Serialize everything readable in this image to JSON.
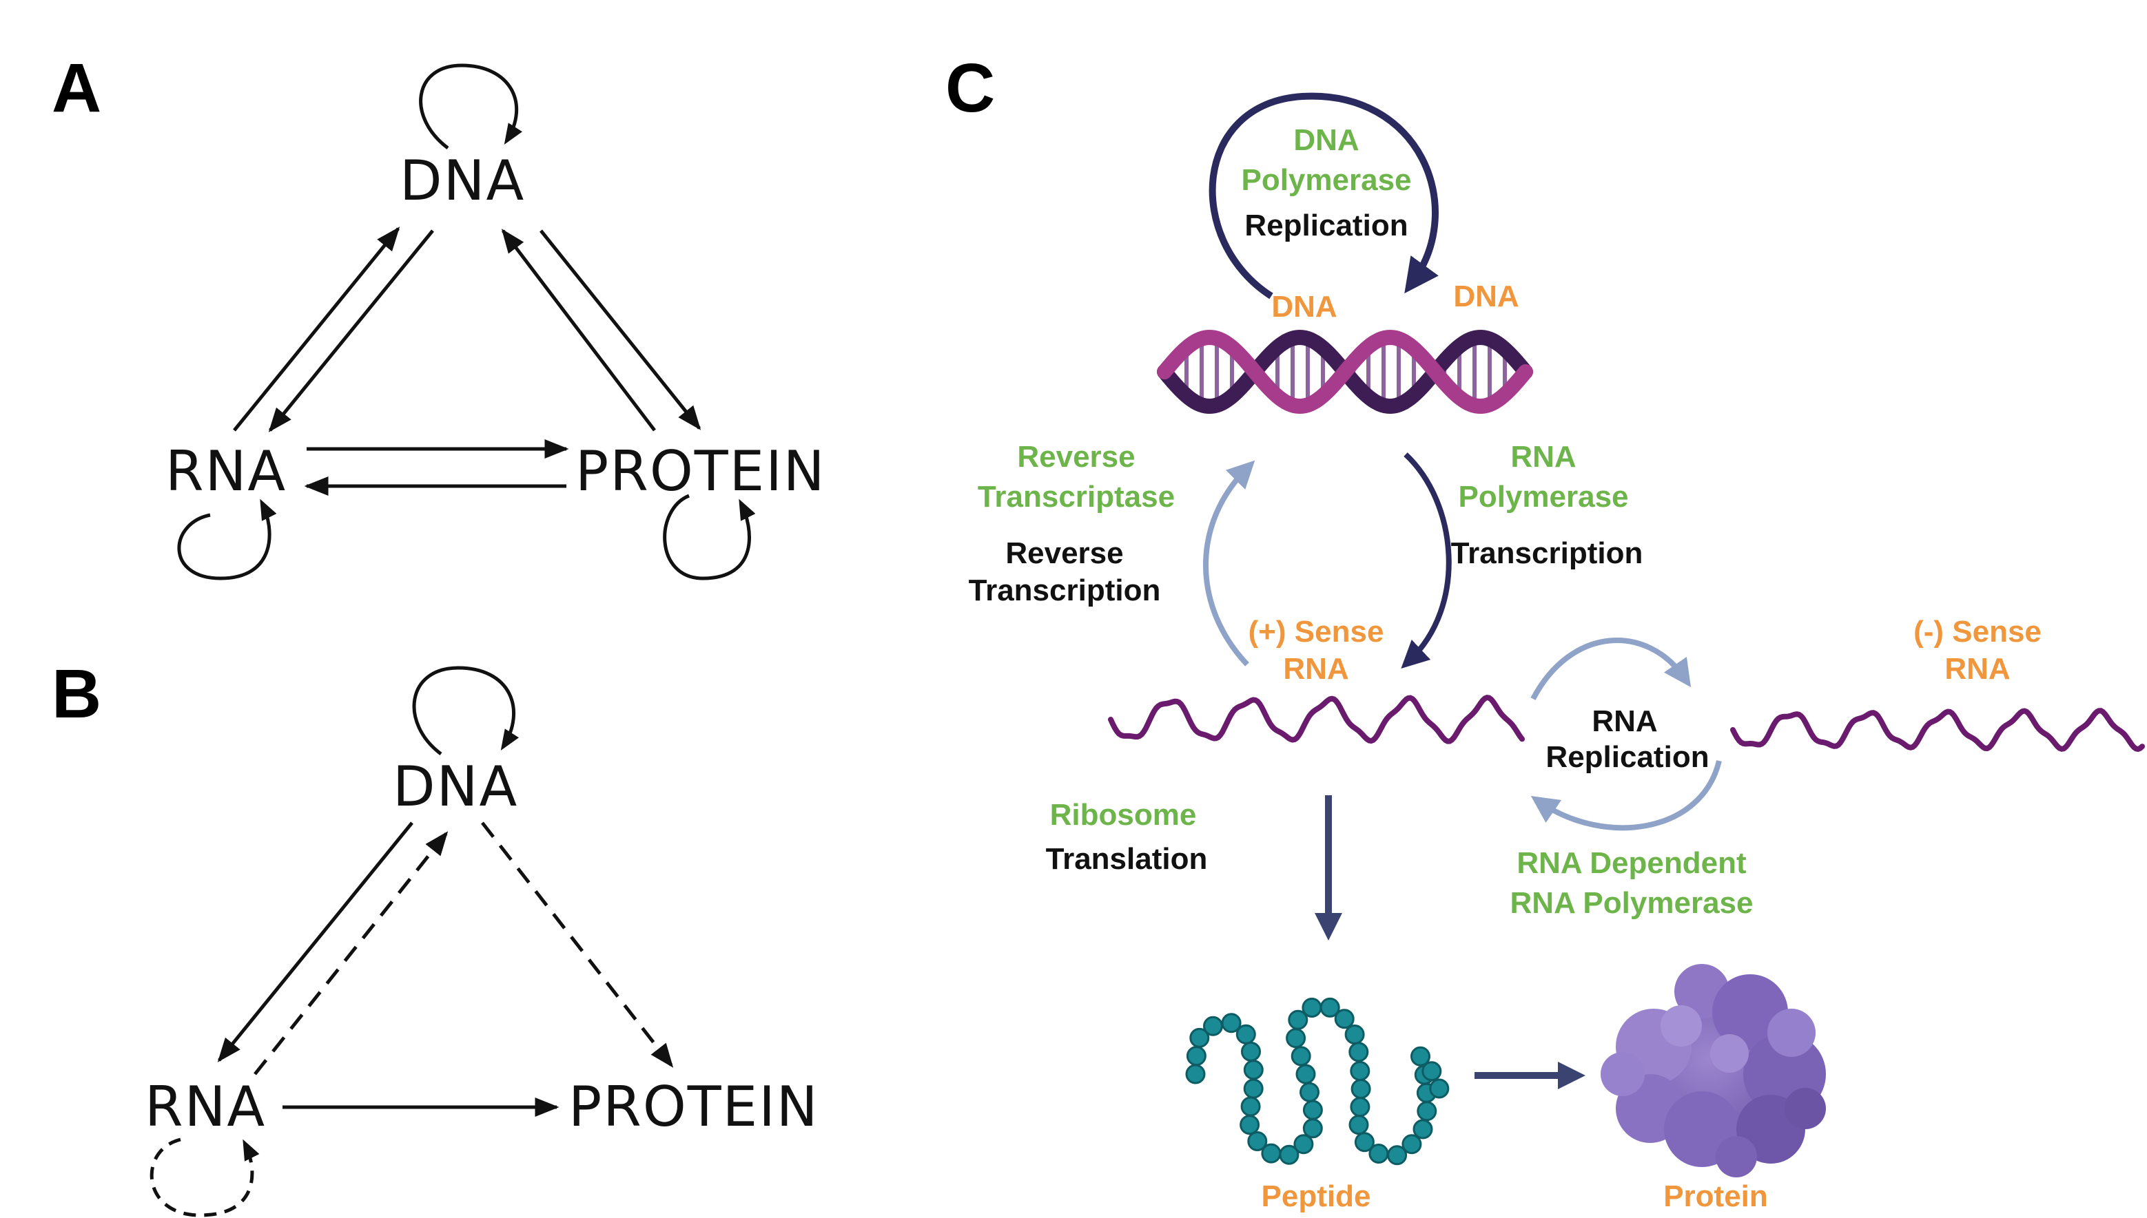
{
  "panels": {
    "a": {
      "letter": "A",
      "nodes": {
        "dna": "DNA",
        "rna": "RNA",
        "protein": "PROTEIN"
      }
    },
    "b": {
      "letter": "B",
      "nodes": {
        "dna": "DNA",
        "rna": "RNA",
        "protein": "PROTEIN"
      }
    },
    "c": {
      "letter": "C",
      "dna_polymerase": [
        "DNA",
        "Polymerase"
      ],
      "replication": "Replication",
      "dna_left": "DNA",
      "dna_right": "DNA",
      "reverse_transcriptase": [
        "Reverse",
        "Transcriptase"
      ],
      "reverse_transcription": [
        "Reverse",
        "Transcription"
      ],
      "rna_polymerase": [
        "RNA",
        "Polymerase"
      ],
      "transcription": "Transcription",
      "plus_sense_rna": [
        "(+) Sense",
        "RNA"
      ],
      "minus_sense_rna": [
        "(-) Sense",
        "RNA"
      ],
      "rna_replication": [
        "RNA",
        "Replication"
      ],
      "rdrp": [
        "RNA Dependent",
        "RNA Polymerase"
      ],
      "ribosome": "Ribosome",
      "translation": "Translation",
      "peptide": "Peptide",
      "protein": "Protein"
    }
  },
  "colors": {
    "green_label": "#6db44b",
    "orange_label": "#f0963c",
    "dark_arrow": "#2b2a5e",
    "light_arrow": "#8fa3c9",
    "dna_purple": "#3d1d54",
    "dna_magenta": "#a83c8c",
    "rna_purple": "#6a1b6e",
    "peptide_teal": "#1a8a94",
    "protein_lavender": "#8a6fc0"
  }
}
